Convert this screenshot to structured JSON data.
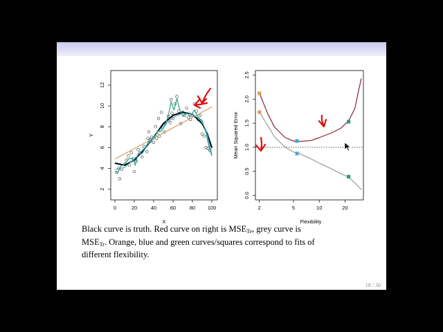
{
  "slide": {
    "caption": {
      "line1_a": "Black curve is truth. Red curve on right is MSE",
      "line1_sub": "Te",
      "line1_b": ", grey curve is",
      "line2_a": "MSE",
      "line2_sub": "Tr",
      "line2_b": ". Orange, blue and green curves/squares correspond to fits of",
      "line3": "different flexibility."
    },
    "page_number": "18 / 30"
  },
  "colors": {
    "true_curve": "#000000",
    "test_mse": "#8b2232",
    "train_mse": "#9a9a9a",
    "orange_fit": "#d4a060",
    "blue_fit": "#4aa8d8",
    "green_fit": "#2a9e82",
    "annotation_arrow": "#dd1111"
  },
  "chart_data": [
    {
      "type": "scatter",
      "xlabel": "X",
      "ylabel": "Y",
      "xlim": [
        0,
        100
      ],
      "ylim": [
        1.5,
        13
      ],
      "xticks": [
        0,
        20,
        40,
        60,
        80,
        100
      ],
      "yticks": [
        2,
        4,
        6,
        8,
        10,
        12
      ],
      "points": [
        [
          2,
          3.6
        ],
        [
          4,
          4.0
        ],
        [
          5,
          3.0
        ],
        [
          7,
          3.9
        ],
        [
          10,
          4.4
        ],
        [
          12,
          4.8
        ],
        [
          14,
          5.2
        ],
        [
          15,
          4.3
        ],
        [
          17,
          5.5
        ],
        [
          19,
          4.9
        ],
        [
          20,
          3.7
        ],
        [
          22,
          4.7
        ],
        [
          24,
          5.8
        ],
        [
          26,
          5.5
        ],
        [
          28,
          5.1
        ],
        [
          30,
          6.1
        ],
        [
          33,
          5.6
        ],
        [
          34,
          6.9
        ],
        [
          35,
          7.5
        ],
        [
          37,
          6.6
        ],
        [
          38,
          7.0
        ],
        [
          40,
          6.5
        ],
        [
          42,
          8.0
        ],
        [
          43,
          6.9
        ],
        [
          44,
          7.2
        ],
        [
          45,
          8.8
        ],
        [
          46,
          7.1
        ],
        [
          48,
          9.4
        ],
        [
          49,
          7.9
        ],
        [
          51,
          7.5
        ],
        [
          52,
          8.3
        ],
        [
          55,
          9.0
        ],
        [
          57,
          8.4
        ],
        [
          58,
          10.6
        ],
        [
          59,
          9.3
        ],
        [
          60,
          8.8
        ],
        [
          62,
          10.2
        ],
        [
          64,
          10.9
        ],
        [
          66,
          9.5
        ],
        [
          68,
          8.3
        ],
        [
          70,
          9.4
        ],
        [
          72,
          9.1
        ],
        [
          74,
          9.8
        ],
        [
          76,
          8.9
        ],
        [
          78,
          8.7
        ],
        [
          80,
          9.1
        ],
        [
          82,
          10.2
        ],
        [
          84,
          9.5
        ],
        [
          86,
          8.7
        ],
        [
          88,
          9.1
        ],
        [
          90,
          7.3
        ],
        [
          92,
          7.1
        ],
        [
          94,
          6.0
        ],
        [
          96,
          5.9
        ],
        [
          98,
          5.7
        ],
        [
          99,
          6.0
        ]
      ],
      "series": [
        {
          "color": "#000000",
          "points": [
            [
              0,
              4.5
            ],
            [
              10,
              4.3
            ],
            [
              20,
              4.8
            ],
            [
              30,
              5.8
            ],
            [
              40,
              7.0
            ],
            [
              50,
              8.3
            ],
            [
              60,
              9.1
            ],
            [
              70,
              9.4
            ],
            [
              80,
              9.2
            ],
            [
              90,
              8.3
            ],
            [
              95,
              7.4
            ],
            [
              100,
              6.0
            ]
          ]
        },
        {
          "color": "#d4a060",
          "points": [
            [
              0,
              4.9
            ],
            [
              100,
              9.9
            ]
          ]
        },
        {
          "color": "#4aa8d8",
          "points": [
            [
              0,
              3.9
            ],
            [
              10,
              4.1
            ],
            [
              20,
              4.9
            ],
            [
              30,
              5.9
            ],
            [
              40,
              7.0
            ],
            [
              50,
              8.1
            ],
            [
              60,
              8.9
            ],
            [
              70,
              9.3
            ],
            [
              80,
              9.2
            ],
            [
              88,
              8.7
            ],
            [
              94,
              7.7
            ],
            [
              100,
              5.3
            ]
          ]
        },
        {
          "color": "#2a9e82",
          "points": [
            [
              0,
              3.7
            ],
            [
              3,
              3.6
            ],
            [
              6,
              4.2
            ],
            [
              10,
              4.4
            ],
            [
              14,
              4.9
            ],
            [
              18,
              5.0
            ],
            [
              21,
              4.3
            ],
            [
              24,
              5.4
            ],
            [
              28,
              5.4
            ],
            [
              32,
              6.0
            ],
            [
              36,
              6.9
            ],
            [
              40,
              6.8
            ],
            [
              44,
              7.6
            ],
            [
              47,
              7.5
            ],
            [
              51,
              8.0
            ],
            [
              55,
              9.0
            ],
            [
              58,
              10.4
            ],
            [
              61,
              9.6
            ],
            [
              64,
              10.7
            ],
            [
              67,
              9.6
            ],
            [
              70,
              9.0
            ],
            [
              74,
              9.3
            ],
            [
              78,
              9.0
            ],
            [
              82,
              9.6
            ],
            [
              86,
              8.9
            ],
            [
              90,
              8.6
            ],
            [
              94,
              7.4
            ],
            [
              97,
              6.1
            ],
            [
              100,
              5.2
            ]
          ]
        }
      ]
    },
    {
      "type": "line",
      "xlabel": "Flexibility",
      "ylabel": "Mean Squared Error",
      "xscale": "log",
      "xlim": [
        1.9,
        31
      ],
      "ylim": [
        -0.05,
        2.55
      ],
      "xticks": [
        2,
        5,
        10,
        20
      ],
      "yticks": [
        0.0,
        0.5,
        1.0,
        1.5,
        2.0,
        2.5
      ],
      "ytick_labels": [
        "0.0",
        "0.5",
        "1.0",
        "1.5",
        "2.0",
        "2.5"
      ],
      "reference_line": 1.0,
      "series": [
        {
          "color": "#8b2232",
          "points": [
            [
              2,
              2.12
            ],
            [
              2.5,
              1.7
            ],
            [
              3,
              1.42
            ],
            [
              4,
              1.2
            ],
            [
              5,
              1.13
            ],
            [
              6,
              1.12
            ],
            [
              8,
              1.14
            ],
            [
              10,
              1.2
            ],
            [
              14,
              1.3
            ],
            [
              18,
              1.4
            ],
            [
              22,
              1.55
            ],
            [
              26,
              1.8
            ],
            [
              29,
              2.2
            ],
            [
              31,
              2.43
            ]
          ]
        },
        {
          "color": "#9a9a9a",
          "points": [
            [
              2,
              1.73
            ],
            [
              2.5,
              1.45
            ],
            [
              3,
              1.22
            ],
            [
              4,
              1.0
            ],
            [
              5,
              0.9
            ],
            [
              6,
              0.86
            ],
            [
              8,
              0.76
            ],
            [
              10,
              0.67
            ],
            [
              14,
              0.55
            ],
            [
              18,
              0.45
            ],
            [
              22,
              0.38
            ],
            [
              26,
              0.26
            ],
            [
              29,
              0.18
            ],
            [
              31,
              0.12
            ]
          ]
        }
      ],
      "markers": [
        {
          "color": "#d4a060",
          "x": 2,
          "y": 2.12
        },
        {
          "color": "#d4a060",
          "x": 2,
          "y": 1.73
        },
        {
          "color": "#4aa8d8",
          "x": 5.5,
          "y": 1.13
        },
        {
          "color": "#4aa8d8",
          "x": 5.5,
          "y": 0.87
        },
        {
          "color": "#2a9e82",
          "x": 22,
          "y": 1.53
        },
        {
          "color": "#2a9e82",
          "x": 22,
          "y": 0.39
        }
      ]
    }
  ]
}
